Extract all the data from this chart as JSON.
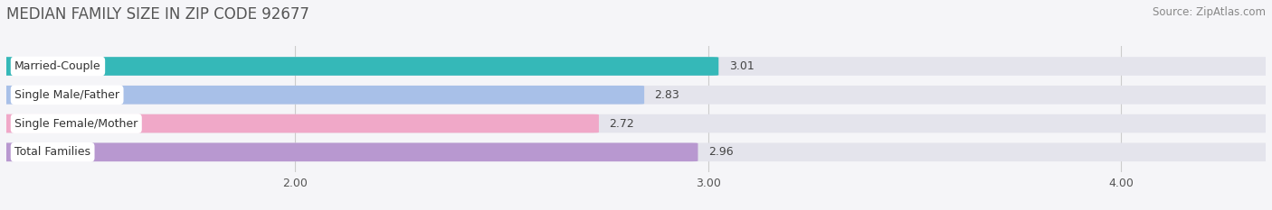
{
  "title": "MEDIAN FAMILY SIZE IN ZIP CODE 92677",
  "source": "Source: ZipAtlas.com",
  "categories": [
    "Married-Couple",
    "Single Male/Father",
    "Single Female/Mother",
    "Total Families"
  ],
  "values": [
    3.01,
    2.83,
    2.72,
    2.96
  ],
  "bar_colors": [
    "#35b8b8",
    "#a8c0e8",
    "#f0a8c8",
    "#b898d0"
  ],
  "xlim_min": 1.3,
  "xlim_max": 4.35,
  "xticks": [
    2.0,
    3.0,
    4.0
  ],
  "background_color": "#f5f5f8",
  "bar_bg_color": "#e4e4ec",
  "title_fontsize": 12,
  "source_fontsize": 8.5,
  "bar_height": 0.62,
  "bar_gap": 0.18,
  "figsize": [
    14.06,
    2.33
  ],
  "dpi": 100
}
